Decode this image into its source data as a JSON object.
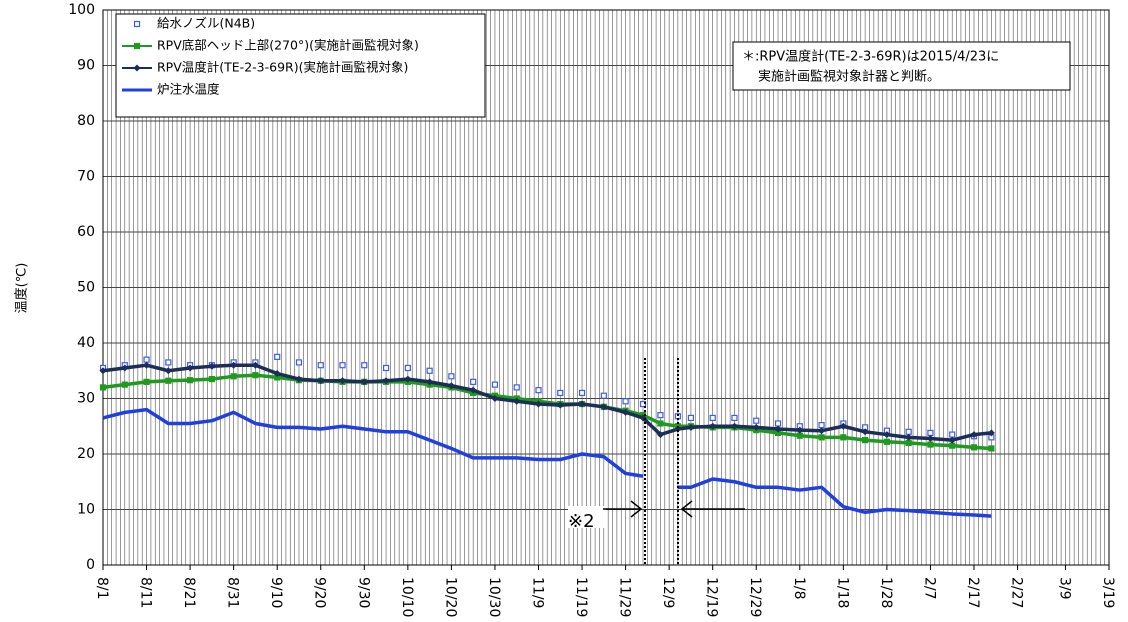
{
  "chart_data": {
    "type": "line",
    "y_label": "温度(℃)",
    "x": [
      "8/1",
      "8/6",
      "8/11",
      "8/16",
      "8/21",
      "8/26",
      "8/31",
      "9/5",
      "9/10",
      "9/15",
      "9/20",
      "9/25",
      "9/30",
      "10/5",
      "10/10",
      "10/15",
      "10/20",
      "10/25",
      "10/30",
      "11/4",
      "11/9",
      "11/14",
      "11/19",
      "11/24",
      "11/29",
      "12/3",
      "12/7",
      "12/11",
      "12/14",
      "12/19",
      "12/24",
      "12/29",
      "1/3",
      "1/8",
      "1/13",
      "1/18",
      "1/23",
      "1/28",
      "2/2",
      "2/7",
      "2/12",
      "2/17",
      "2/21"
    ],
    "series": [
      {
        "name": "給水ノズル(N4B)",
        "color": "#3a5cf0",
        "marker": "square",
        "line": false,
        "values": [
          35.5,
          36,
          37,
          36.5,
          36,
          36,
          36.5,
          36.5,
          37.5,
          36.5,
          36,
          36,
          36,
          35.5,
          35.5,
          35,
          34,
          33,
          32.5,
          32,
          31.5,
          31,
          31,
          30.5,
          29.5,
          29,
          27,
          26.8,
          26.5,
          26.5,
          26.5,
          26,
          25.5,
          25,
          25.2,
          25.5,
          24.8,
          24.2,
          24,
          23.8,
          23.5,
          23.2,
          23
        ]
      },
      {
        "name": "RPV底部ヘッド上部(270°)(実施計画監視対象)",
        "color": "#1e9a1e",
        "marker": "square",
        "line": true,
        "values": [
          32,
          32.5,
          33,
          33.2,
          33.3,
          33.5,
          34,
          34.2,
          33.8,
          33.3,
          33.2,
          33,
          33,
          33,
          33,
          32.5,
          32,
          31,
          30.5,
          30,
          29.5,
          29,
          29,
          28.5,
          27.8,
          27,
          25.5,
          25,
          25,
          24.8,
          24.8,
          24.3,
          23.8,
          23.3,
          23,
          23,
          22.5,
          22.2,
          22,
          21.7,
          21.5,
          21.2,
          21
        ]
      },
      {
        "name": "RPV温度計(TE-2-3-69R)(実施計画監視対象)",
        "color": "#1c2d58",
        "marker": "diamond",
        "line": true,
        "values": [
          35,
          35.5,
          36,
          35,
          35.5,
          35.8,
          36,
          36,
          34.5,
          33.5,
          33.2,
          33.2,
          33,
          33.2,
          33.5,
          33,
          32.3,
          31.5,
          30,
          29.5,
          29,
          28.8,
          29,
          28.5,
          27.5,
          26.5,
          23.5,
          24.5,
          24.8,
          25,
          25,
          24.8,
          24.5,
          24.3,
          24.2,
          25,
          24,
          23.5,
          23,
          22.8,
          22.5,
          23.5,
          23.8
        ]
      },
      {
        "name": "炉注水温度",
        "color": "#1f3fe0",
        "marker": "none",
        "line": true,
        "values": [
          26.5,
          27.5,
          28,
          25.5,
          25.5,
          26,
          27.5,
          25.5,
          24.8,
          24.8,
          24.5,
          25,
          24.5,
          24,
          24,
          22.5,
          21,
          19.3,
          19.3,
          19.3,
          19,
          19,
          20,
          19.5,
          16.5,
          16,
          null,
          14,
          14,
          15.5,
          15,
          14,
          14,
          13.5,
          14,
          10.5,
          9.5,
          10,
          9.8,
          9.5,
          9.2,
          9,
          8.8
        ]
      }
    ],
    "xlim": [
      "8/1",
      "3/19"
    ],
    "xticks": [
      "8/1",
      "8/11",
      "8/21",
      "8/31",
      "9/10",
      "9/20",
      "9/30",
      "10/10",
      "10/20",
      "10/30",
      "11/9",
      "11/19",
      "11/29",
      "12/9",
      "12/19",
      "12/29",
      "1/8",
      "1/18",
      "1/28",
      "2/7",
      "2/17",
      "2/27",
      "3/9",
      "3/19"
    ],
    "ylim": [
      0,
      100
    ],
    "yticks": [
      0,
      10,
      20,
      30,
      40,
      50,
      60,
      70,
      80,
      90,
      100
    ],
    "grid": true,
    "legend": "upper left",
    "note": [
      "＊:RPV温度計(TE-2-3-69R)は2015/4/23に",
      "実施計画監視対象計器と判断。"
    ],
    "annotation": "※2"
  }
}
